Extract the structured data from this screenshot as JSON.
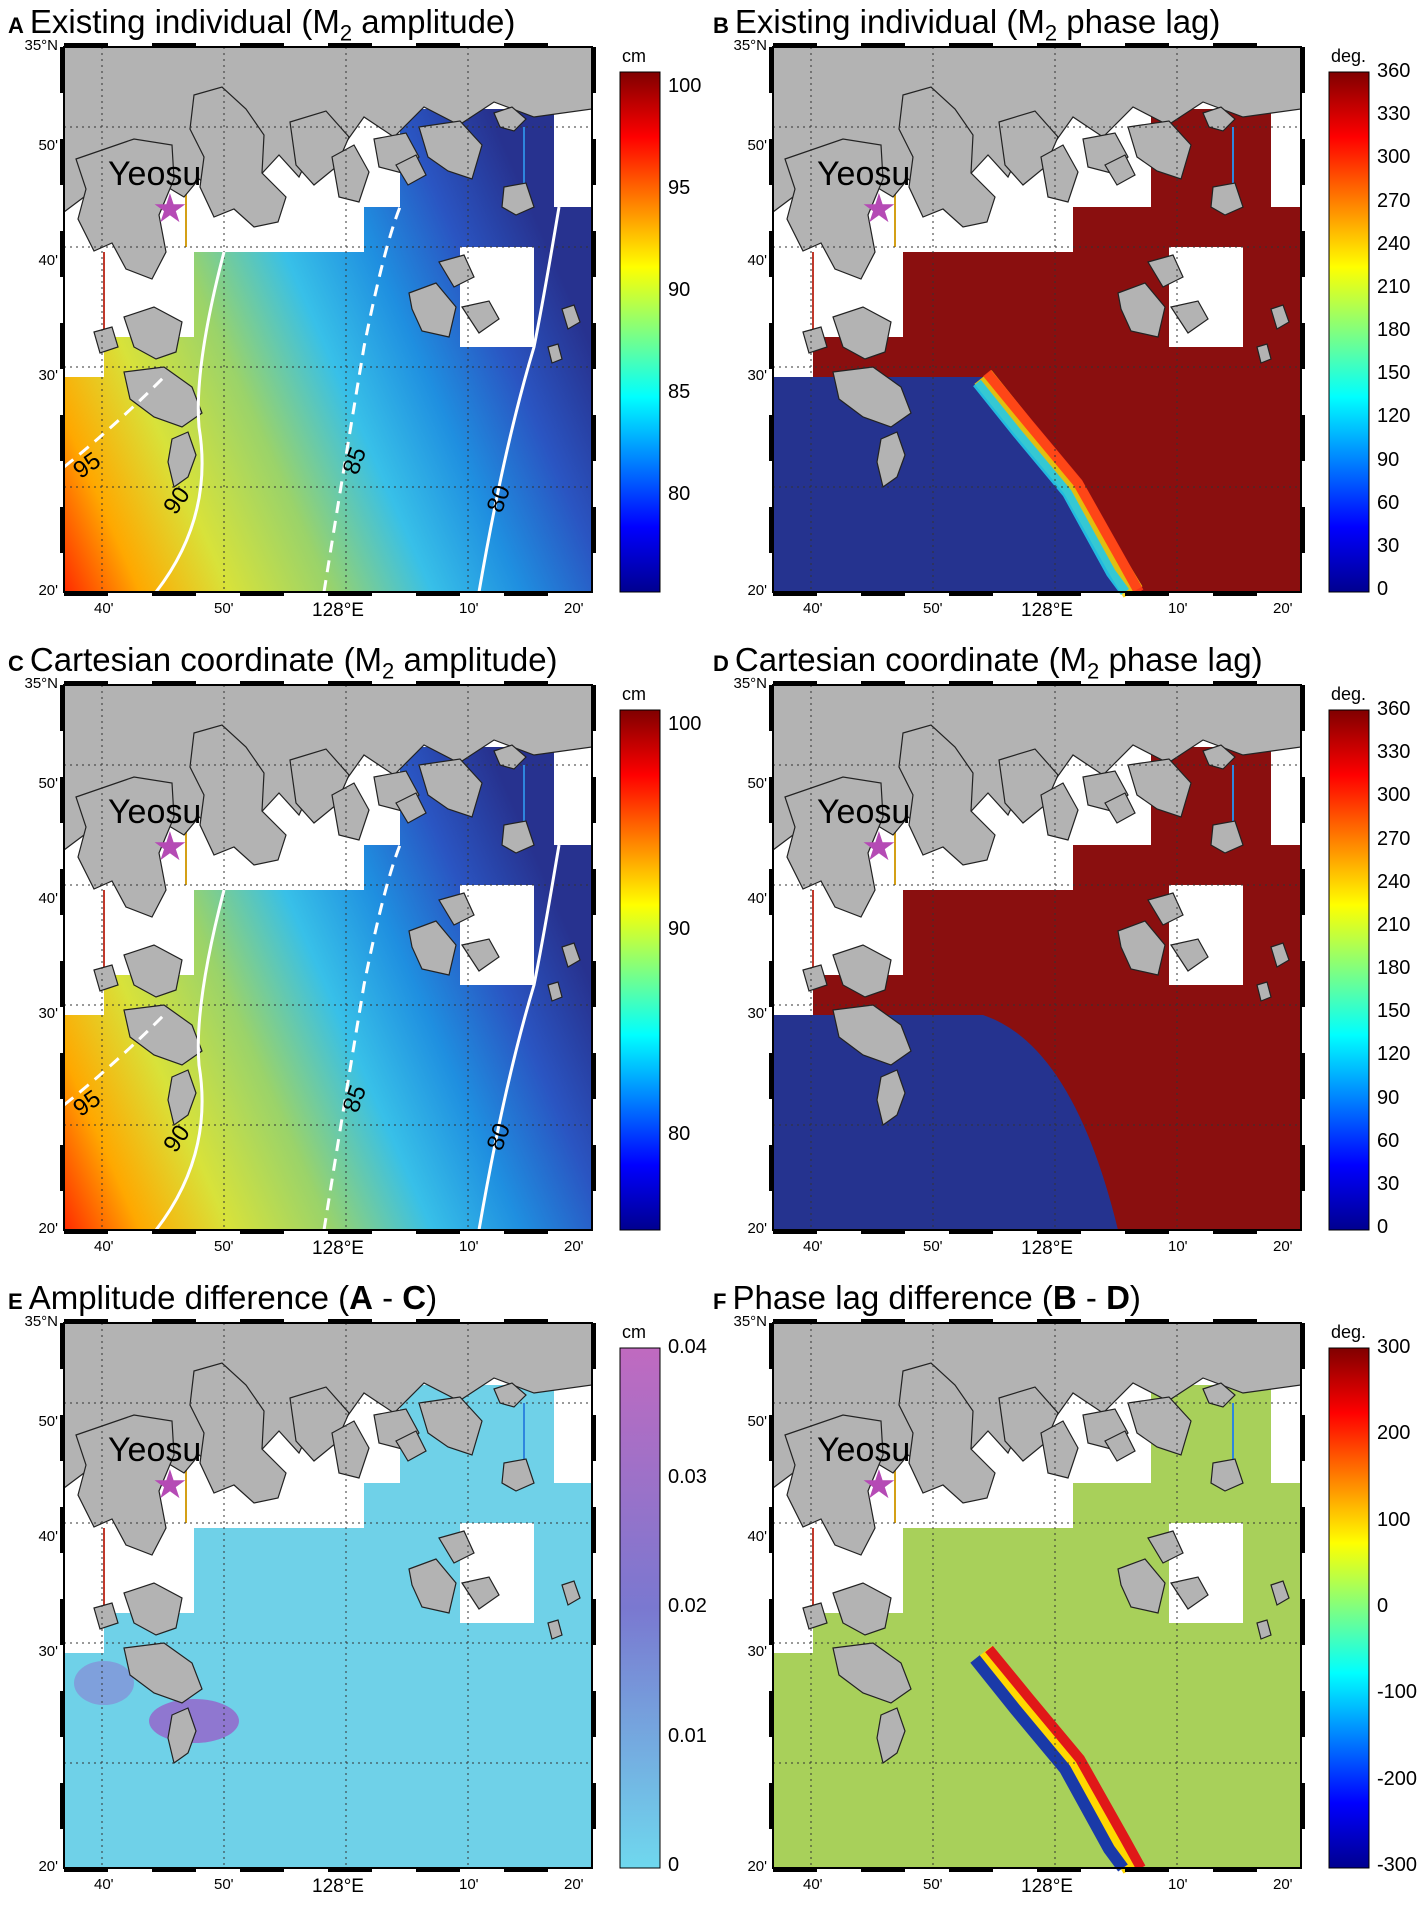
{
  "panels": [
    {
      "letter": "A",
      "title_pre": "Existing individual (M",
      "title_sub": "2",
      "title_post": " amplitude)",
      "title_bold": "",
      "title_mid": "",
      "title_bold2": "",
      "title_end": "",
      "variable": "M2 amplitude",
      "colorbar": {
        "unit": "cm",
        "ticks": [
          "100",
          "95",
          "90",
          "85",
          "80"
        ],
        "scheme": "jet"
      },
      "contours": [
        "95",
        "90",
        "85",
        "80"
      ]
    },
    {
      "letter": "B",
      "title_pre": "Existing individual (M",
      "title_sub": "2",
      "title_post": " phase lag)",
      "title_bold": "",
      "title_mid": "",
      "title_bold2": "",
      "title_end": "",
      "variable": "M2 phase lag",
      "colorbar": {
        "unit": "deg.",
        "ticks": [
          "360",
          "330",
          "300",
          "270",
          "240",
          "210",
          "180",
          "150",
          "120",
          "90",
          "60",
          "30",
          "0"
        ],
        "scheme": "jet"
      },
      "contours": []
    },
    {
      "letter": "C",
      "title_pre": "Cartesian coordinate (M",
      "title_sub": "2",
      "title_post": " amplitude)",
      "title_bold": "",
      "title_mid": "",
      "title_bold2": "",
      "title_end": "",
      "variable": "M2 amplitude",
      "colorbar": {
        "unit": "cm",
        "ticks": [
          "100",
          "90",
          "80"
        ],
        "scheme": "jet"
      },
      "contours": [
        "95",
        "90",
        "85",
        "80"
      ]
    },
    {
      "letter": "D",
      "title_pre": "Cartesian coordinate (M",
      "title_sub": "2",
      "title_post": " phase lag)",
      "title_bold": "",
      "title_mid": "",
      "title_bold2": "",
      "title_end": "",
      "variable": "M2 phase lag",
      "colorbar": {
        "unit": "deg.",
        "ticks": [
          "360",
          "330",
          "300",
          "270",
          "240",
          "210",
          "180",
          "150",
          "120",
          "90",
          "60",
          "30",
          "0"
        ],
        "scheme": "jet"
      },
      "contours": []
    },
    {
      "letter": "E",
      "title_pre": "Amplitude difference (",
      "title_sub": "",
      "title_post": "",
      "title_bold": "A",
      "title_mid": " - ",
      "title_bold2": "C",
      "title_end": ")",
      "variable": "Amplitude difference",
      "colorbar": {
        "unit": "cm",
        "ticks": [
          "0.04",
          "0.03",
          "0.02",
          "0.01",
          "0"
        ],
        "scheme": "cyan-purple"
      },
      "contours": []
    },
    {
      "letter": "F",
      "title_pre": "Phase lag difference (",
      "title_sub": "",
      "title_post": "",
      "title_bold": "B",
      "title_mid": " - ",
      "title_bold2": "D",
      "title_end": ")",
      "variable": "Phase lag difference",
      "colorbar": {
        "unit": "deg.",
        "ticks": [
          "300",
          "200",
          "100",
          "0",
          "-100",
          "-200",
          "-300"
        ],
        "scheme": "jet"
      },
      "contours": []
    }
  ],
  "axes": {
    "lat_labels": [
      "35°N",
      "50'",
      "40'",
      "30'",
      "20'"
    ],
    "lon_labels": [
      "40'",
      "50'",
      "128°E",
      "10'",
      "20'"
    ]
  },
  "place_label": "Yeosu",
  "colors": {
    "land": "#b3b3b3",
    "ocean_mask": "#ffffff",
    "star": "#b54ab5"
  }
}
